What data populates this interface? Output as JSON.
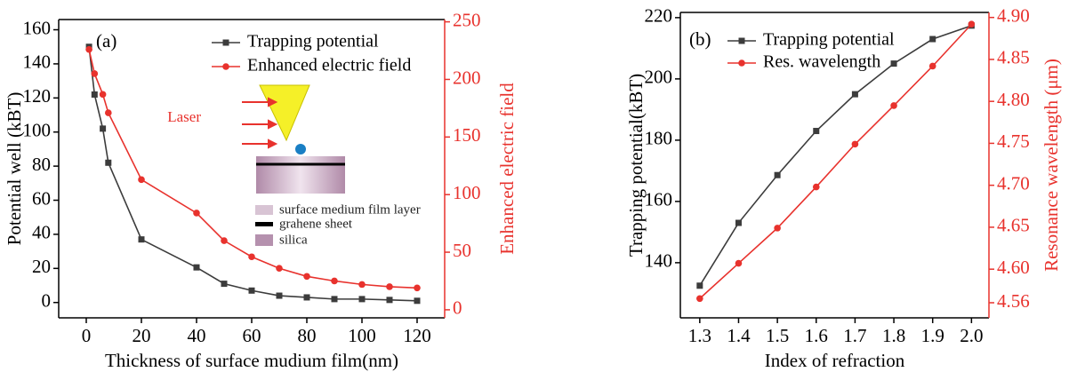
{
  "chart_data": [
    {
      "type": "line",
      "panel_label": "(a)",
      "x_label": "Thickness of surface mudium film(nm)",
      "y_label": "Potential well (kBT)",
      "y2_label": "Enhanced electric field",
      "x": [
        1,
        3,
        6,
        8,
        20,
        40,
        50,
        60,
        70,
        80,
        90,
        100,
        110,
        120
      ],
      "series": [
        {
          "name": "Trapping potential",
          "color": "#3c3c3c",
          "marker": "square",
          "values": [
            150,
            122,
            102,
            82,
            37,
            20.6,
            11,
            7,
            4,
            3,
            2,
            2,
            1.5,
            1
          ]
        },
        {
          "name": "Enhanced electric field",
          "color": "#e8322d",
          "marker": "circle",
          "axis": "y2",
          "values": [
            226,
            205,
            187,
            171,
            113,
            84,
            60,
            46,
            36,
            29,
            25,
            22,
            20,
            19
          ]
        }
      ],
      "xlim": [
        -10,
        130
      ],
      "xticks": [
        0,
        20,
        40,
        60,
        80,
        100,
        120
      ],
      "ylim": [
        -9,
        166
      ],
      "yticks": [
        0,
        20,
        40,
        60,
        80,
        100,
        120,
        140,
        160
      ],
      "y2lim": [
        -7,
        252
      ],
      "y2ticks": [
        0,
        50,
        100,
        150,
        200,
        250
      ],
      "annotations": [
        "Laser",
        "surface medium film layer",
        "grahene sheet",
        "silica"
      ]
    },
    {
      "type": "line",
      "panel_label": "(b)",
      "x_label": "Index of refraction",
      "y_label": "Trapping potential(kBT)",
      "y2_label": "Resonance wavelength (μm)",
      "x": [
        1.3,
        1.4,
        1.5,
        1.6,
        1.7,
        1.8,
        1.9,
        2.0
      ],
      "series": [
        {
          "name": "Trapping potential",
          "color": "#3c3c3c",
          "marker": "square",
          "values": [
            132.5,
            153,
            168.6,
            183,
            195,
            205,
            213,
            217.4
          ]
        },
        {
          "name": "Res. wavelength",
          "color": "#e8322d",
          "marker": "circle",
          "axis": "y2",
          "values": [
            4.565,
            4.607,
            4.649,
            4.698,
            4.749,
            4.795,
            4.842,
            4.892
          ]
        }
      ],
      "xlim": [
        1.25,
        2.045
      ],
      "xticks": [
        1.3,
        1.4,
        1.5,
        1.6,
        1.7,
        1.8,
        1.9,
        {
          "value": 2,
          "label": "2.0"
        }
      ],
      "ylim": [
        122,
        221.7
      ],
      "yticks": [
        140,
        160,
        180,
        200,
        220
      ],
      "y2lim": [
        4.542,
        4.906
      ],
      "y2ticks": [
        {
          "value": 4.56,
          "label": "4.56"
        },
        {
          "value": 4.6,
          "label": "4.60"
        },
        4.65,
        {
          "value": 4.7,
          "label": "4.70"
        },
        4.75,
        {
          "value": 4.8,
          "label": "4.80"
        },
        4.85,
        {
          "value": 4.9,
          "label": "4.90"
        }
      ],
      "annotations": []
    }
  ]
}
